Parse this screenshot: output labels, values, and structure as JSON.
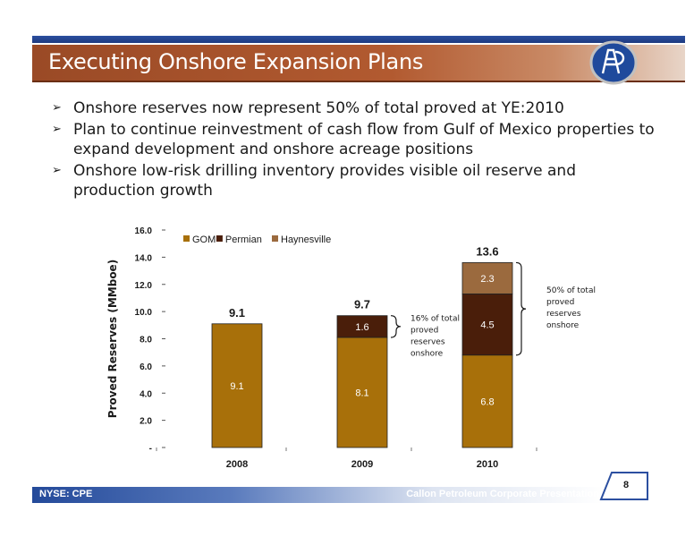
{
  "slide": {
    "title": "Executing Onshore Expansion Plans",
    "bullets": [
      "Onshore reserves now represent 50% of total proved at YE:2010",
      "Plan to continue reinvestment of cash flow from Gulf of Mexico properties to expand development and onshore acreage positions",
      "Onshore low-risk drilling inventory provides visible oil reserve and production growth"
    ],
    "bullet_icon": "arrow-bullet-icon"
  },
  "footer": {
    "ticker": "NYSE: CPE",
    "presentation": "Callon Petroleum Corporate Presentation",
    "page": "8"
  },
  "logo_icon": "company-logo-icon",
  "colors": {
    "title_band": "#b25a30",
    "accent_blue": "#2c4fa0",
    "gom": "#a8700a",
    "permian": "#4a1e0a",
    "haynesville": "#9b6a3e"
  },
  "chart_data": {
    "type": "bar",
    "stacked": true,
    "ylabel": "Proved Reserves (MMboe)",
    "xlabel": "",
    "ylim": [
      0,
      16
    ],
    "yticks": [
      "-",
      "2.0",
      "4.0",
      "6.0",
      "8.0",
      "10.0",
      "12.0",
      "14.0",
      "16.0"
    ],
    "categories": [
      "2008",
      "2009",
      "2010"
    ],
    "series": [
      {
        "name": "GOM",
        "values": [
          9.1,
          8.1,
          6.8
        ],
        "labels": [
          "9.1",
          "8.1",
          "6.8"
        ],
        "color": "#a8700a"
      },
      {
        "name": "Permian",
        "values": [
          0,
          1.6,
          4.5
        ],
        "labels": [
          "",
          "1.6",
          "4.5"
        ],
        "color": "#4a1e0a"
      },
      {
        "name": "Haynesville",
        "values": [
          0,
          0,
          2.3
        ],
        "labels": [
          "",
          "",
          "2.3"
        ],
        "color": "#9b6a3e"
      }
    ],
    "totals": [
      "9.1",
      "9.7",
      "13.6"
    ],
    "legend_position": "top-left",
    "grid": false,
    "annotations": [
      {
        "category": "2009",
        "text": "16% of total proved reserves onshore"
      },
      {
        "category": "2010",
        "text": "50% of total proved reserves onshore"
      }
    ]
  }
}
